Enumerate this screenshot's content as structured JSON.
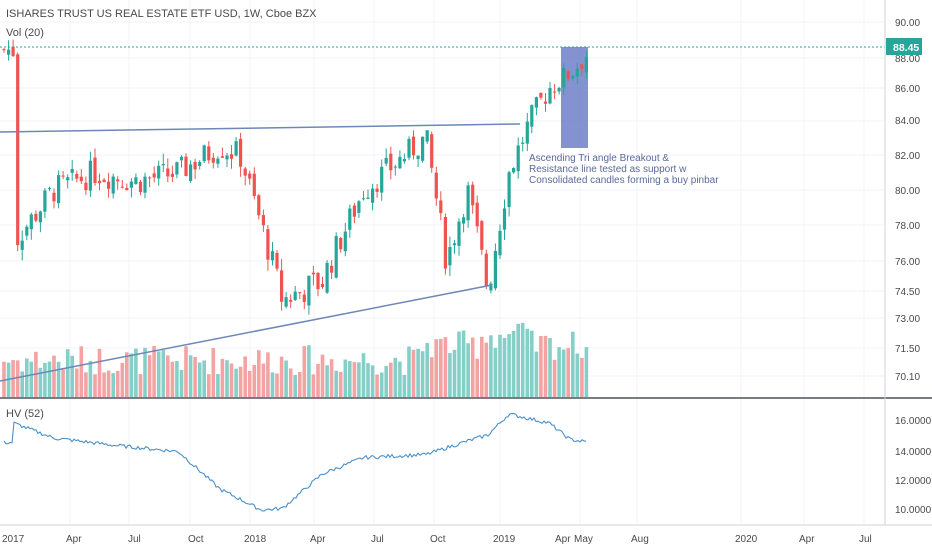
{
  "header": {
    "title": "ISHARES TRUST US REAL ESTATE ETF USD, 1W, Cboe BZX",
    "vol_label": "Vol (20)",
    "hv_label": "HV (52)"
  },
  "price_badge": "88.45",
  "colors": {
    "up": "#26a69a",
    "down": "#ef5350",
    "vol_up": "#86cfc8",
    "vol_down": "#f4a3a3",
    "trendline": "#6d87b8",
    "hv_line": "#4a90c8",
    "highlight": "#5b6fc0",
    "badge": "#26a69a"
  },
  "annotation": [
    "Ascending Tri angle Breakout &",
    "Resistance line tested as support w",
    "Consolidated candles forming a buy pinbar"
  ],
  "chart_data": [
    {
      "type": "candlestick",
      "title": "ISHARES TRUST US REAL ESTATE ETF USD, 1W, Cboe BZX",
      "ylim": [
        69.5,
        91
      ],
      "y_ticks": [
        "90.00",
        "88.00",
        "86.00",
        "84.00",
        "82.00",
        "80.00",
        "78.00",
        "76.00",
        "74.50",
        "73.00",
        "71.50",
        "70.10"
      ],
      "x_ticks": [
        "2017",
        "Apr",
        "Jul",
        "Oct",
        "2018",
        "Apr",
        "Jul",
        "Oct",
        "2019",
        "Apr",
        "May",
        "Aug",
        "2020",
        "Apr",
        "Jul"
      ],
      "last_price": 88.45,
      "approx_close_path": [
        {
          "date": "2017-01",
          "close": 77.0
        },
        {
          "date": "2017-03",
          "close": 80.0
        },
        {
          "date": "2017-05",
          "close": 81.0
        },
        {
          "date": "2017-07",
          "close": 80.5
        },
        {
          "date": "2017-09",
          "close": 81.0
        },
        {
          "date": "2017-11",
          "close": 82.5
        },
        {
          "date": "2017-12",
          "close": 82.0
        },
        {
          "date": "2018-02",
          "close": 74.0
        },
        {
          "date": "2018-04",
          "close": 75.0
        },
        {
          "date": "2018-06",
          "close": 80.0
        },
        {
          "date": "2018-08",
          "close": 82.0
        },
        {
          "date": "2018-09",
          "close": 83.0
        },
        {
          "date": "2018-10",
          "close": 76.0
        },
        {
          "date": "2018-11",
          "close": 80.0
        },
        {
          "date": "2018-12",
          "close": 74.5
        },
        {
          "date": "2019-01",
          "close": 81.0
        },
        {
          "date": "2019-02",
          "close": 84.0
        },
        {
          "date": "2019-03",
          "close": 86.0
        },
        {
          "date": "2019-04",
          "close": 87.0
        },
        {
          "date": "2019-05",
          "close": 88.45
        }
      ]
    },
    {
      "type": "bar",
      "title": "Vol (20)"
    },
    {
      "type": "line",
      "title": "HV (52)",
      "ylim": [
        9,
        17
      ],
      "y_ticks": [
        "16.0000",
        "14.0000",
        "12.0000",
        "10.0000"
      ],
      "values": [
        {
          "date": "2017-01",
          "hv": 15.8
        },
        {
          "date": "2017-03",
          "hv": 14.8
        },
        {
          "date": "2017-06",
          "hv": 14.3
        },
        {
          "date": "2017-09",
          "hv": 13.9
        },
        {
          "date": "2017-11",
          "hv": 11.4
        },
        {
          "date": "2018-01",
          "hv": 10.0
        },
        {
          "date": "2018-02",
          "hv": 10.1
        },
        {
          "date": "2018-04",
          "hv": 12.4
        },
        {
          "date": "2018-06",
          "hv": 13.5
        },
        {
          "date": "2018-09",
          "hv": 13.7
        },
        {
          "date": "2018-11",
          "hv": 14.6
        },
        {
          "date": "2018-12",
          "hv": 15.0
        },
        {
          "date": "2019-01",
          "hv": 16.4
        },
        {
          "date": "2019-03",
          "hv": 15.8
        },
        {
          "date": "2019-04",
          "hv": 14.7
        },
        {
          "date": "2019-05",
          "hv": 14.5
        }
      ]
    }
  ]
}
